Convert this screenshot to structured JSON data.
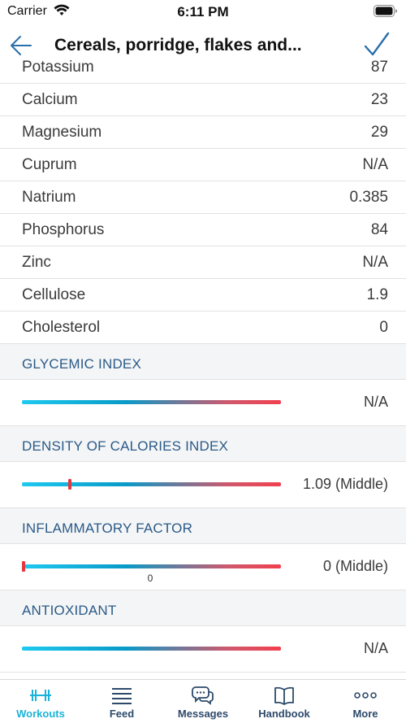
{
  "status_bar": {
    "carrier": "Carrier",
    "time": "6:11 PM"
  },
  "nav": {
    "title": "Cereals, porridge, flakes and..."
  },
  "nutrients": [
    {
      "label": "Potassium",
      "value": "87"
    },
    {
      "label": "Calcium",
      "value": "23"
    },
    {
      "label": "Magnesium",
      "value": "29"
    },
    {
      "label": "Cuprum",
      "value": "N/A"
    },
    {
      "label": "Natrium",
      "value": "0.385"
    },
    {
      "label": "Phosphorus",
      "value": "84"
    },
    {
      "label": "Zinc",
      "value": "N/A"
    },
    {
      "label": "Cellulose",
      "value": "1.9"
    },
    {
      "label": "Cholesterol",
      "value": "0"
    }
  ],
  "indices": [
    {
      "title": "GLYCEMIC INDEX",
      "value": "N/A",
      "marker": null,
      "tick_label": ""
    },
    {
      "title": "DENSITY OF CALORIES INDEX",
      "value": "1.09 (Middle)",
      "marker": 0.18,
      "tick_label": ""
    },
    {
      "title": "INFLAMMATORY FACTOR",
      "value": "0 (Middle)",
      "marker": 0.0,
      "tick_label": "0"
    },
    {
      "title": "ANTIOXIDANT",
      "value": "N/A",
      "marker": null,
      "tick_label": ""
    }
  ],
  "tabs": [
    {
      "label": "Workouts",
      "icon": "dumbbell-icon",
      "active": true
    },
    {
      "label": "Feed",
      "icon": "feed-lines-icon",
      "active": false
    },
    {
      "label": "Messages",
      "icon": "chat-bubbles-icon",
      "active": false
    },
    {
      "label": "Handbook",
      "icon": "book-icon",
      "active": false
    },
    {
      "label": "More",
      "icon": "more-dots-icon",
      "active": false
    }
  ],
  "colors": {
    "accent": "#1ab3d8",
    "nav_tint": "#2a6faa",
    "section_title": "#2a5a88",
    "marker": "#e5383e"
  }
}
